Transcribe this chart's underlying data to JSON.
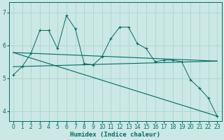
{
  "background_color": "#cbe8e4",
  "grid_color": "#a8d5cf",
  "line_color": "#006b63",
  "xlabel": "Humidex (Indice chaleur)",
  "xlim": [
    -0.5,
    23.5
  ],
  "ylim": [
    3.7,
    7.3
  ],
  "yticks": [
    4,
    5,
    6,
    7
  ],
  "xticks": [
    0,
    1,
    2,
    3,
    4,
    5,
    6,
    7,
    8,
    9,
    10,
    11,
    12,
    13,
    14,
    15,
    16,
    17,
    18,
    19,
    20,
    21,
    22,
    23
  ],
  "series": [
    {
      "x": [
        0,
        1,
        2,
        3,
        4,
        5,
        6,
        7,
        8,
        9,
        10,
        11,
        12,
        13,
        14,
        15,
        16,
        17,
        18,
        19,
        20,
        21,
        22,
        23
      ],
      "y": [
        5.1,
        5.35,
        5.75,
        6.45,
        6.45,
        5.9,
        6.9,
        6.5,
        5.45,
        5.4,
        5.65,
        6.2,
        6.55,
        6.55,
        6.05,
        5.9,
        5.5,
        5.55,
        5.55,
        5.5,
        4.95,
        4.7,
        4.4,
        3.85
      ]
    },
    {
      "x": [
        0,
        23
      ],
      "y": [
        5.78,
        5.52
      ]
    },
    {
      "x": [
        0,
        23
      ],
      "y": [
        5.35,
        5.52
      ]
    },
    {
      "x": [
        0,
        23
      ],
      "y": [
        5.78,
        3.85
      ]
    }
  ]
}
